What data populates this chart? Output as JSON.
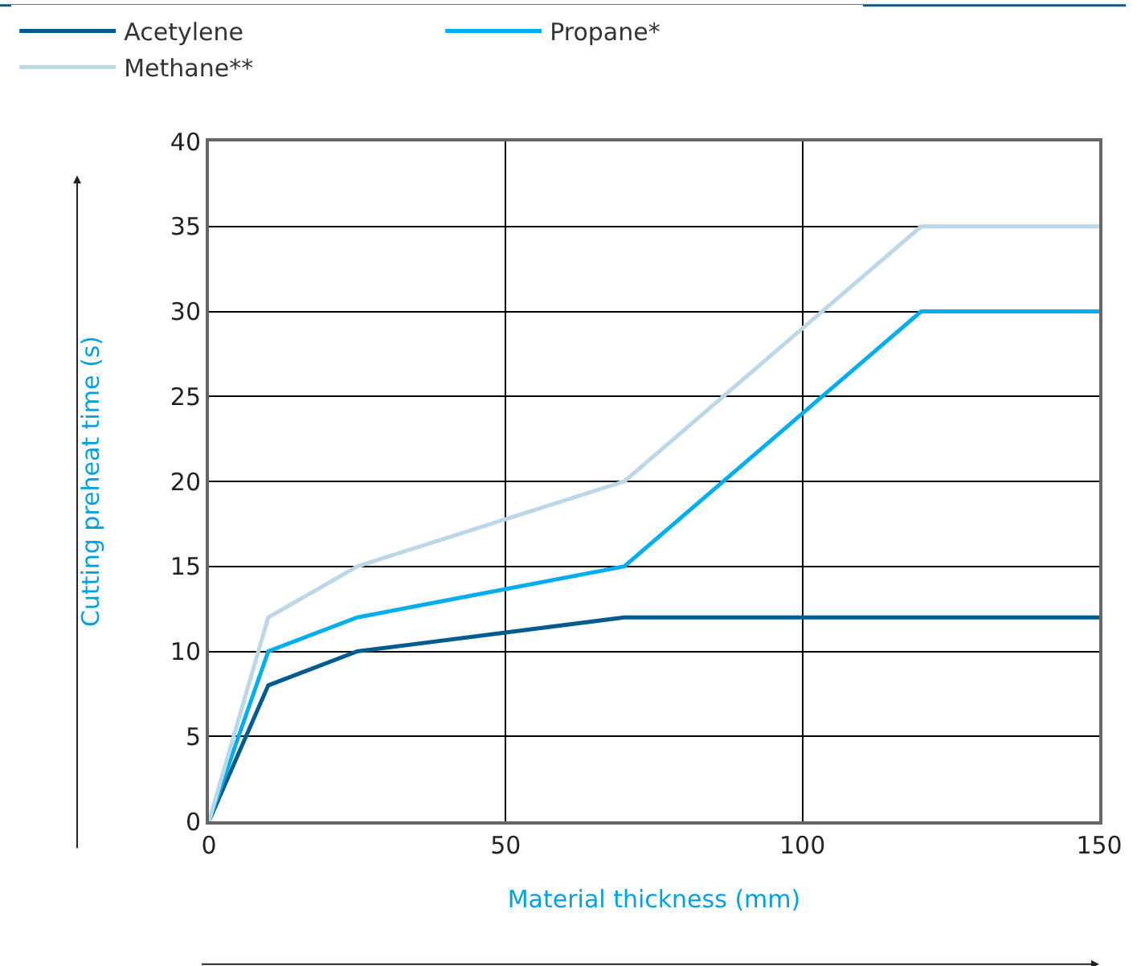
{
  "chart_data": {
    "type": "line",
    "xlabel": "Material thickness (mm)",
    "ylabel": "Cutting preheat time (s)",
    "x": [
      0,
      10,
      25,
      70,
      120,
      150
    ],
    "series": [
      {
        "name": "Acetylene",
        "color": "#005b8f",
        "values": [
          0,
          8,
          10,
          12,
          12,
          12
        ]
      },
      {
        "name": "Propane*",
        "color": "#00aeef",
        "values": [
          0,
          10,
          12,
          15,
          30,
          30
        ]
      },
      {
        "name": "Methane**",
        "color": "#bcd7e5",
        "values": [
          0,
          12,
          15,
          20,
          35,
          35
        ]
      }
    ],
    "xlim": [
      0,
      150
    ],
    "xticks": [
      0,
      50,
      100,
      150
    ],
    "ylim": [
      0,
      40
    ],
    "yticks": [
      0,
      5,
      10,
      15,
      20,
      25,
      30,
      35,
      40
    ],
    "grid": true,
    "legend": "top left",
    "marker": "none",
    "line_style": "solid"
  }
}
